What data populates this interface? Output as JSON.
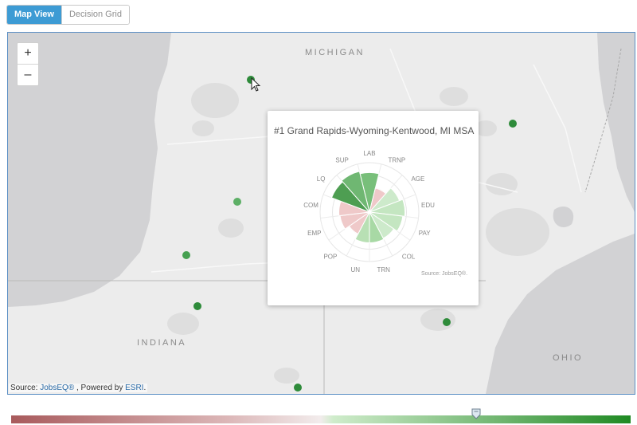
{
  "toolbar": {
    "map_view_label": "Map View",
    "decision_grid_label": "Decision Grid"
  },
  "map": {
    "zoom_in_label": "+",
    "zoom_out_label": "–",
    "states": [
      {
        "name": "MICHIGAN"
      },
      {
        "name": "INDIANA"
      },
      {
        "name": "OHIO"
      }
    ],
    "attribution": {
      "prefix": "Source: ",
      "jobseq": "JobsEQ®",
      "middle": " , Powered by ",
      "esri": "ESRI",
      "suffix": "."
    },
    "markers": [
      {
        "color": "#2e8b3a"
      },
      {
        "color": "#2e8b3a"
      },
      {
        "color": "#5daf66"
      },
      {
        "color": "#45a050"
      },
      {
        "color": "#2e8b3a"
      },
      {
        "color": "#2e8b3a"
      },
      {
        "color": "#2e8b3a"
      }
    ]
  },
  "popup": {
    "title": "#1 Grand Rapids-Wyoming-Kentwood, MI MSA",
    "source": "Source: JobsEQ®.",
    "wedges": [
      {
        "label": "LAB",
        "score": 0.8,
        "color": "#78bf7a"
      },
      {
        "label": "TRNP",
        "score": 0.5,
        "color": "#efc9c9"
      },
      {
        "label": "AGE",
        "score": 0.65,
        "color": "#cdeacb"
      },
      {
        "label": "EDU",
        "score": 0.72,
        "color": "#c4e6c1"
      },
      {
        "label": "PAY",
        "score": 0.68,
        "color": "#c4e6c1"
      },
      {
        "label": "COL",
        "score": 0.6,
        "color": "#cdeacb"
      },
      {
        "label": "TRN",
        "score": 0.62,
        "color": "#a8d9a5"
      },
      {
        "label": "UN",
        "score": 0.62,
        "color": "#b8e0b4"
      },
      {
        "label": "POP",
        "score": 0.5,
        "color": "#efc9c9"
      },
      {
        "label": "EMP",
        "score": 0.6,
        "color": "#efc9c9"
      },
      {
        "label": "COM",
        "score": 0.62,
        "color": "#efc9c9"
      },
      {
        "label": "LQ",
        "score": 0.82,
        "color": "#4e9e52"
      },
      {
        "label": "SUP",
        "score": 0.85,
        "color": "#6fb772"
      }
    ]
  }
}
